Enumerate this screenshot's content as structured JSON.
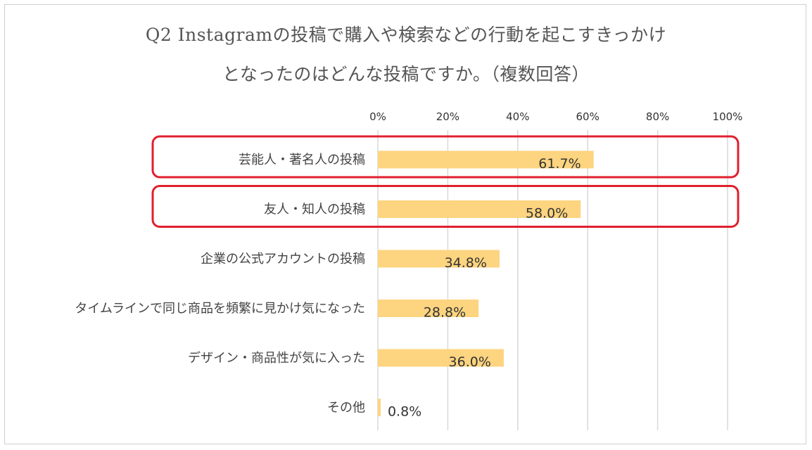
{
  "chart_data": {
    "type": "bar",
    "orientation": "horizontal",
    "title_lines": [
      "Q2 Instagramの投稿で購入や検索などの行動を起こすきっかけ",
      "となったのはどんな投稿ですか。（複数回答）"
    ],
    "categories": [
      "芸能人・著名人の投稿",
      "友人・知人の投稿",
      "企業の公式アカウントの投稿",
      "タイムラインで同じ商品を頻繁に見かけ気になった",
      "デザイン・商品性が気に入った",
      "その他"
    ],
    "values": [
      61.7,
      58.0,
      34.8,
      28.8,
      36.0,
      0.8
    ],
    "data_labels": [
      "61.7%",
      "58.0%",
      "34.8%",
      "28.8%",
      "36.0%",
      "0.8%"
    ],
    "x_ticks": [
      "0%",
      "20%",
      "40%",
      "60%",
      "80%",
      "100%"
    ],
    "xlim": [
      0,
      100
    ],
    "axis_position": "top",
    "grid": true,
    "highlighted_categories": [
      0,
      1
    ],
    "colors": {
      "bar": "#fdd47f",
      "highlight": "#e0202e",
      "grid": "#d9d9d9"
    }
  }
}
